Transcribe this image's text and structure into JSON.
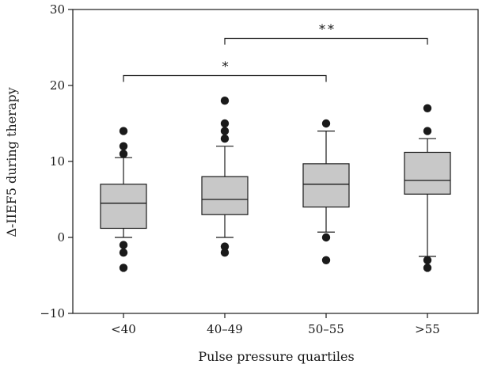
{
  "chart_data": {
    "type": "box",
    "xlabel": "Pulse pressure quartiles",
    "ylabel": "Δ-IIEF5 during therapy",
    "ylim": [
      -10,
      30
    ],
    "yticks": [
      -10,
      0,
      10,
      20,
      30
    ],
    "categories": [
      "<40",
      "40–49",
      "50–55",
      ">55"
    ],
    "boxes": [
      {
        "category": "<40",
        "whisker_low": 0,
        "q1": 1.2,
        "median": 4.5,
        "q3": 7,
        "whisker_high": 10.5,
        "outliers": [
          14,
          12,
          11,
          -1,
          -2,
          -4
        ]
      },
      {
        "category": "40–49",
        "whisker_low": 0,
        "q1": 3,
        "median": 5,
        "q3": 8,
        "whisker_high": 12,
        "outliers": [
          18,
          15,
          14,
          13,
          -1.2,
          -2
        ]
      },
      {
        "category": "50–55",
        "whisker_low": 0.7,
        "q1": 4,
        "median": 7,
        "q3": 9.7,
        "whisker_high": 14,
        "outliers": [
          15,
          0,
          -3
        ]
      },
      {
        "category": ">55",
        "whisker_low": -2.5,
        "q1": 5.7,
        "median": 7.5,
        "q3": 11.2,
        "whisker_high": 13,
        "outliers": [
          17,
          14,
          -3,
          -4
        ]
      }
    ],
    "significance": [
      {
        "from": "<40",
        "to": "50–55",
        "y": 21.3,
        "label": "*"
      },
      {
        "from": "40–49",
        "to": ">55",
        "y": 26.2,
        "label": "**"
      }
    ],
    "grid": false,
    "legend": "none"
  },
  "colors": {
    "box_fill": "#c8c8c8",
    "ink": "#1a1a1a"
  }
}
